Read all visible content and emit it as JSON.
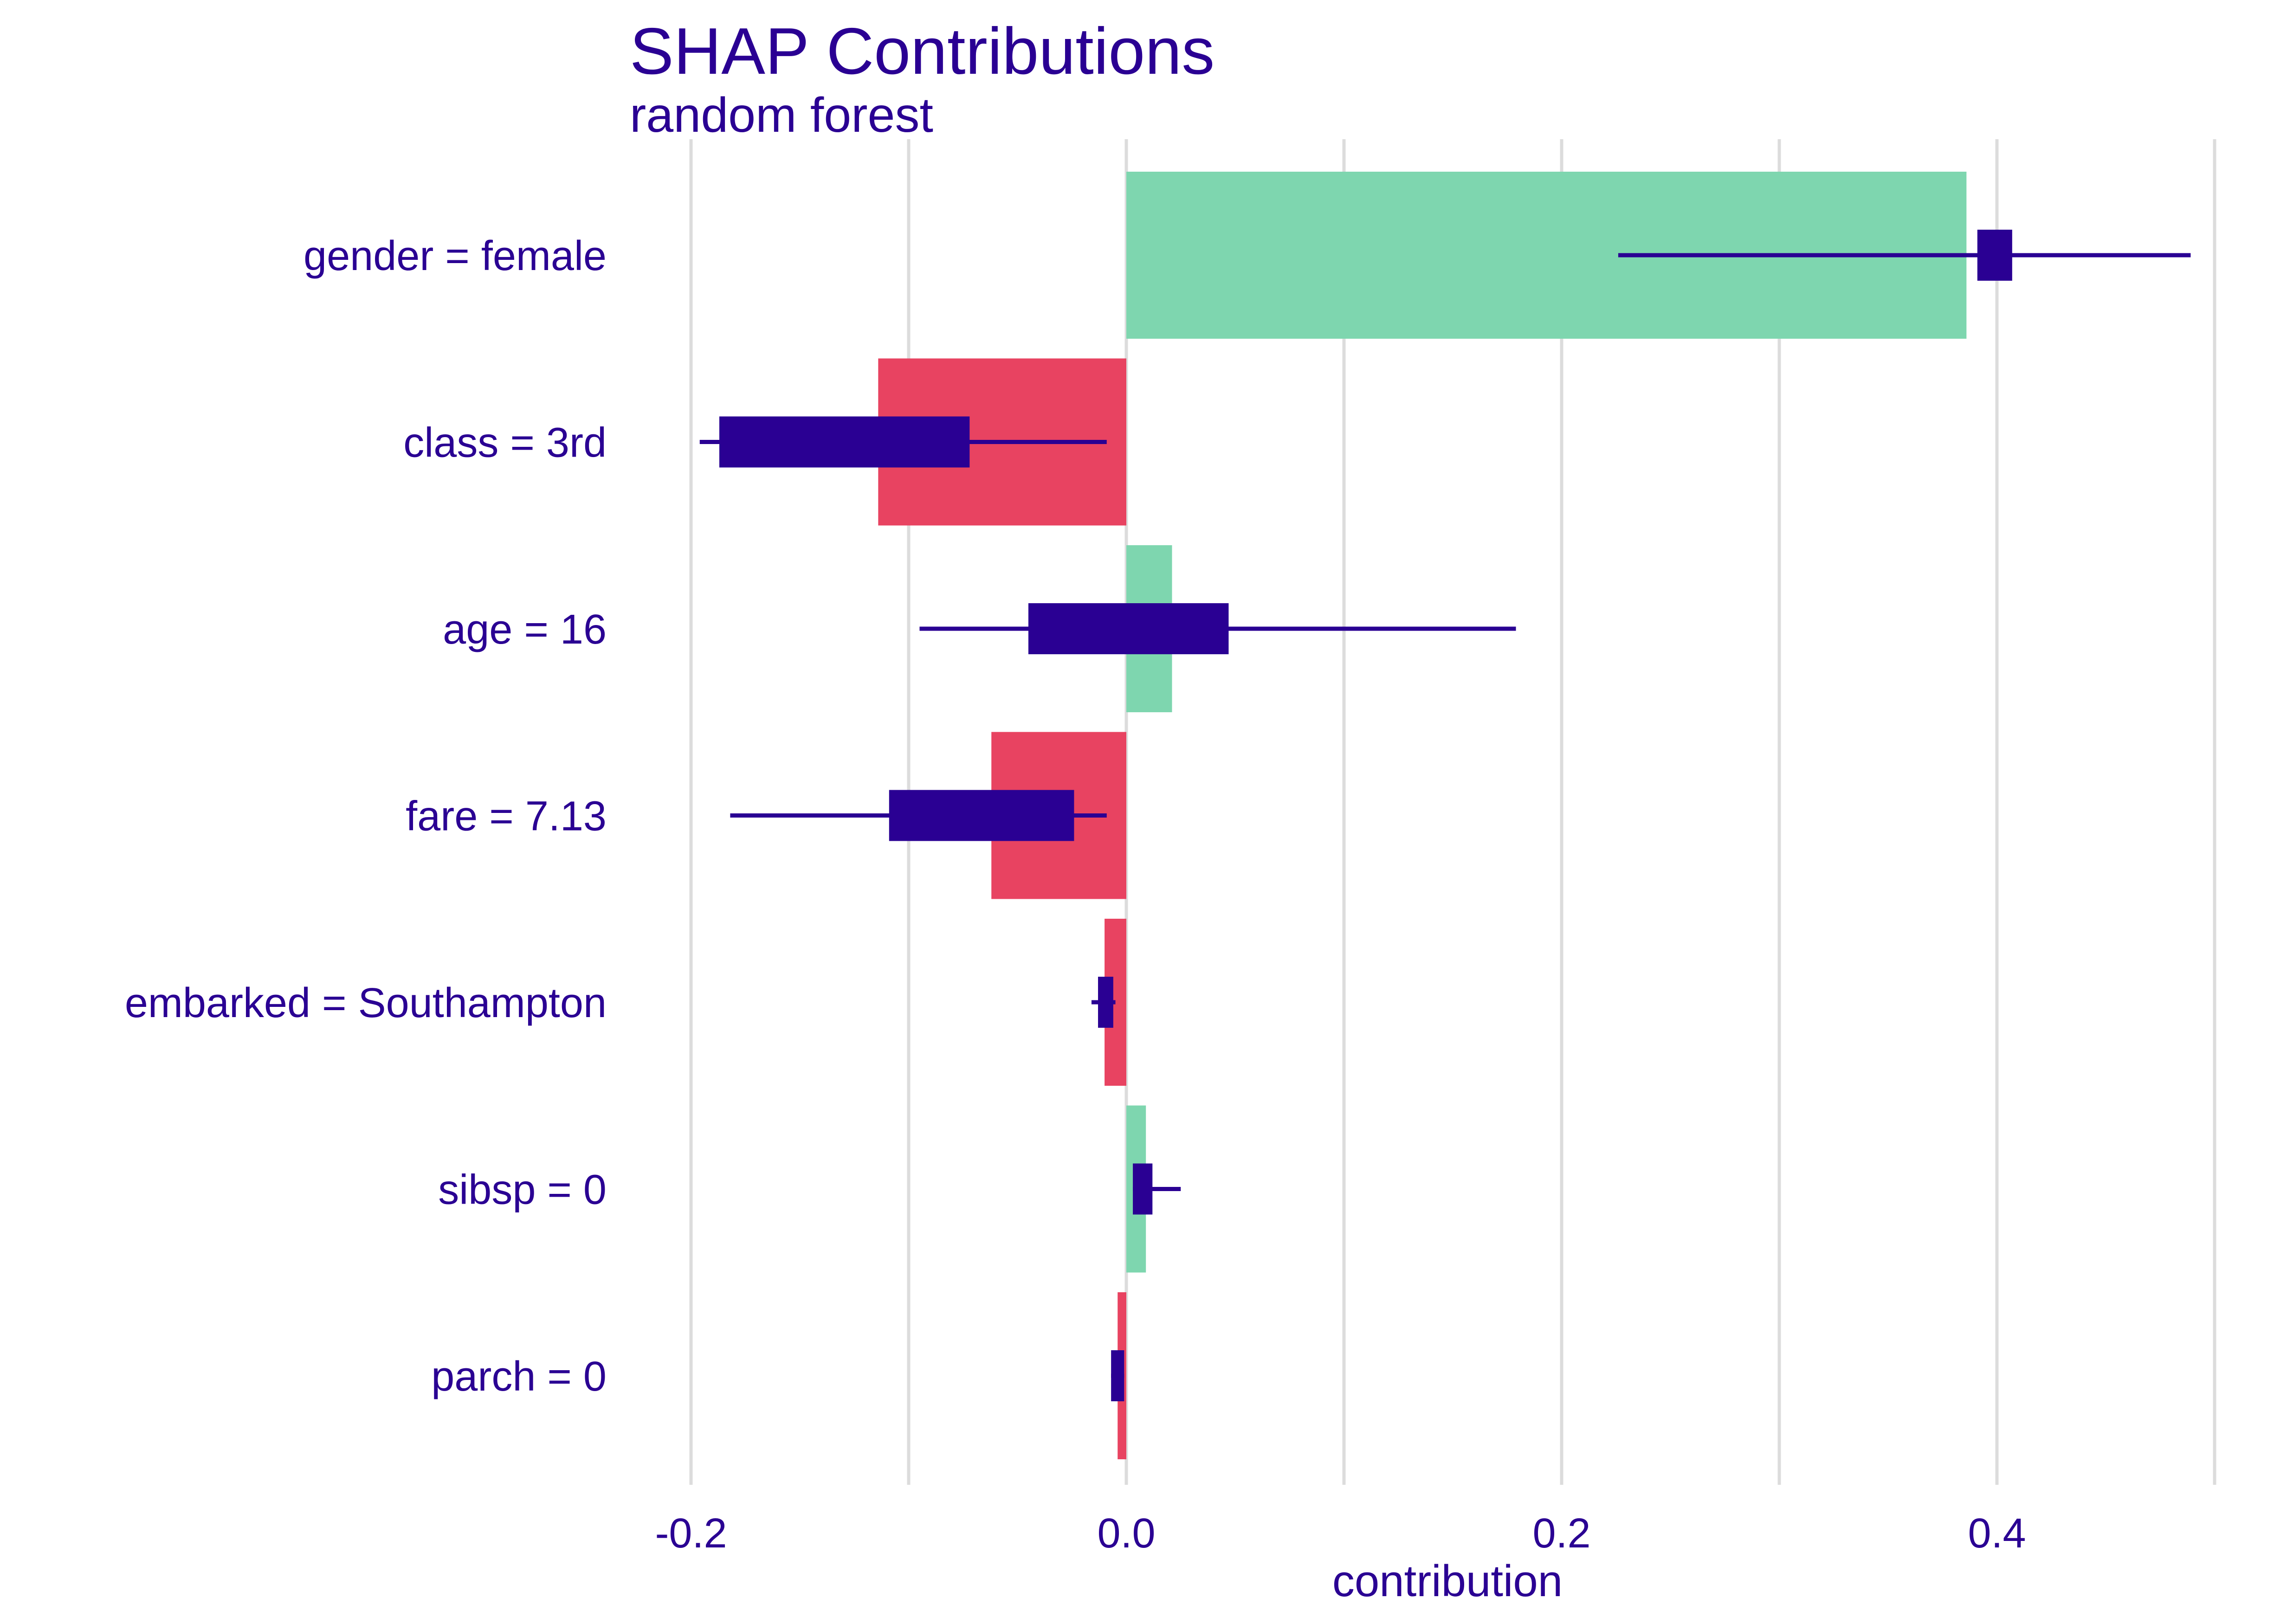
{
  "chart_data": {
    "type": "bar",
    "title": "SHAP Contributions",
    "subtitle": "random forest",
    "xlabel": "contribution",
    "ylabel": "",
    "xlim": [
      -0.224,
      0.5
    ],
    "xticks": [
      -0.2,
      0.0,
      0.2,
      0.4
    ],
    "xtick_labels": [
      "-0.2",
      "0.0",
      "0.2",
      "0.4"
    ],
    "minor_gridlines": [
      -0.1,
      0.1,
      0.3,
      0.5
    ],
    "grid": true,
    "categories": [
      "gender = female",
      "class = 3rd",
      "age = 16",
      "fare = 7.13",
      "embarked = Southampton",
      "sibsp = 0",
      "parch = 0"
    ],
    "values": [
      0.386,
      -0.114,
      0.021,
      -0.062,
      -0.01,
      0.009,
      -0.004
    ],
    "boxplots": [
      {
        "whisker_low": 0.226,
        "q1": 0.391,
        "q3": 0.407,
        "whisker_high": 0.489
      },
      {
        "whisker_low": -0.196,
        "q1": -0.187,
        "q3": -0.072,
        "whisker_high": -0.009
      },
      {
        "whisker_low": -0.095,
        "q1": -0.045,
        "q3": 0.047,
        "whisker_high": 0.179
      },
      {
        "whisker_low": -0.182,
        "q1": -0.109,
        "q3": -0.024,
        "whisker_high": -0.009
      },
      {
        "whisker_low": -0.016,
        "q1": -0.013,
        "q3": -0.006,
        "whisker_high": -0.005
      },
      {
        "whisker_low": 0.003,
        "q1": 0.003,
        "q3": 0.012,
        "whisker_high": 0.025
      },
      {
        "whisker_low": -0.007,
        "q1": -0.007,
        "q3": -0.001,
        "whisker_high": -0.001
      }
    ],
    "colors": {
      "positive": "#7ed6af",
      "negative": "#e84361",
      "boxplot": "#2a0093",
      "text": "#2a0093",
      "grid": "#dcdcdc"
    }
  }
}
